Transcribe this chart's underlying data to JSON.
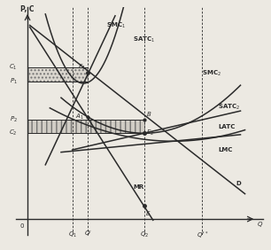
{
  "figsize": [
    3.06,
    2.82
  ],
  "dpi": 100,
  "bg_color": "#ece9e2",
  "line_color": "#2a2a2a",
  "xlim": [
    0,
    10
  ],
  "ylim": [
    0,
    10
  ],
  "y_ticks": {
    "C1": 7.6,
    "P1": 6.9,
    "P2": 5.0,
    "C2": 4.3
  },
  "x_ticks": {
    "Q1": 2.0,
    "Qp": 2.7,
    "Q2": 5.2,
    "Qpp": 7.8
  }
}
